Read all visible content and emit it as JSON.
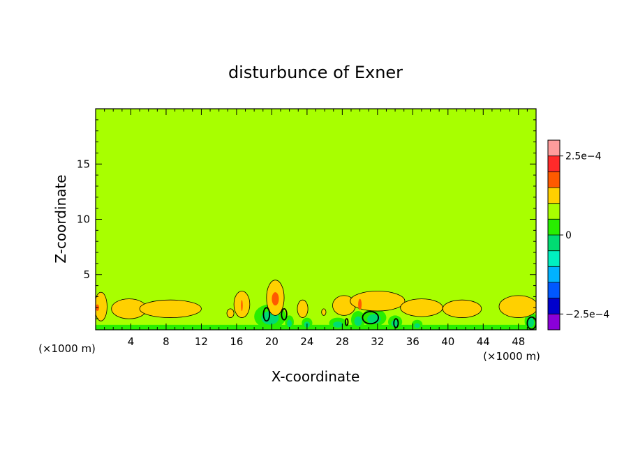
{
  "chart_data": {
    "type": "heatmap",
    "title": "disturbunce of Exner",
    "xlabel": "X-coordinate",
    "ylabel": "Z-coordinate",
    "x_unit": "(×1000 m)",
    "xlim": [
      0,
      50
    ],
    "ylim": [
      0,
      20
    ],
    "x_ticks": [
      4,
      8,
      12,
      16,
      20,
      24,
      28,
      32,
      36,
      40,
      44,
      48
    ],
    "y_ticks": [
      5,
      10,
      15
    ],
    "colorbar": {
      "levels": [
        {
          "lower": 0.00025,
          "color": "#ff9c9c"
        },
        {
          "lower": 0.0002,
          "color": "#ff2a2a"
        },
        {
          "lower": 0.00015,
          "color": "#ff5a00"
        },
        {
          "lower": 0.0001,
          "color": "#ffd000"
        },
        {
          "lower": 5e-05,
          "color": "#a8ff00"
        },
        {
          "lower": 0,
          "color": "#28ee00"
        },
        {
          "lower": -5e-05,
          "color": "#00dc72"
        },
        {
          "lower": -0.0001,
          "color": "#00f0c0"
        },
        {
          "lower": -0.00015,
          "color": "#00b2ff"
        },
        {
          "lower": -0.0002,
          "color": "#0058ff"
        },
        {
          "lower": -0.00025,
          "color": "#0000cc"
        },
        {
          "lower": -0.0003,
          "color": "#8a00d8"
        }
      ],
      "tick_labels": [
        {
          "value": 0.00025,
          "text": "2.5e−4"
        },
        {
          "value": 0,
          "text": "0"
        },
        {
          "value": -0.00025,
          "text": "−2.5e−4"
        }
      ]
    },
    "background_level_color": "#a8ff00",
    "features": {
      "positive_blobs": [
        {
          "x": 0.6,
          "z": 2.1,
          "rx": 0.7,
          "rz": 1.3
        },
        {
          "x": 3.8,
          "z": 1.9,
          "rx": 2.0,
          "rz": 0.9
        },
        {
          "x": 8.5,
          "z": 1.9,
          "rx": 3.5,
          "rz": 0.8
        },
        {
          "x": 15.3,
          "z": 1.5,
          "rx": 0.4,
          "rz": 0.4
        },
        {
          "x": 16.6,
          "z": 2.3,
          "rx": 0.9,
          "rz": 1.2
        },
        {
          "x": 20.4,
          "z": 2.9,
          "rx": 1.0,
          "rz": 1.6
        },
        {
          "x": 23.5,
          "z": 1.9,
          "rx": 0.6,
          "rz": 0.8
        },
        {
          "x": 25.9,
          "z": 1.6,
          "rx": 0.25,
          "rz": 0.3
        },
        {
          "x": 28.2,
          "z": 2.2,
          "rx": 1.3,
          "rz": 0.9
        },
        {
          "x": 32.0,
          "z": 2.6,
          "rx": 3.1,
          "rz": 0.9
        },
        {
          "x": 37.0,
          "z": 2.0,
          "rx": 2.4,
          "rz": 0.8
        },
        {
          "x": 41.6,
          "z": 1.9,
          "rx": 2.2,
          "rz": 0.8
        },
        {
          "x": 48.0,
          "z": 2.1,
          "rx": 2.2,
          "rz": 1.0
        }
      ],
      "strong_positive_spots": [
        {
          "x": 0.2,
          "z": 2.0,
          "rx": 0.2,
          "rz": 0.3
        },
        {
          "x": 16.6,
          "z": 2.2,
          "rx": 0.1,
          "rz": 0.5
        },
        {
          "x": 20.4,
          "z": 2.8,
          "rx": 0.4,
          "rz": 0.6
        },
        {
          "x": 30.0,
          "z": 2.3,
          "rx": 0.2,
          "rz": 0.5
        }
      ],
      "negative_blobs": [
        {
          "x": 19.8,
          "z": 1.2,
          "rx": 1.8,
          "rz": 1.1
        },
        {
          "x": 22.0,
          "z": 0.7,
          "rx": 0.5,
          "rz": 0.6
        },
        {
          "x": 24.0,
          "z": 0.6,
          "rx": 0.6,
          "rz": 0.5
        },
        {
          "x": 27.5,
          "z": 0.6,
          "rx": 1.0,
          "rz": 0.5
        },
        {
          "x": 29.8,
          "z": 0.9,
          "rx": 0.8,
          "rz": 0.8
        },
        {
          "x": 31.6,
          "z": 1.1,
          "rx": 1.4,
          "rz": 0.8
        },
        {
          "x": 34.0,
          "z": 0.7,
          "rx": 0.8,
          "rz": 0.6
        },
        {
          "x": 36.5,
          "z": 0.5,
          "rx": 0.6,
          "rz": 0.4
        },
        {
          "x": 49.4,
          "z": 0.8,
          "rx": 0.7,
          "rz": 0.8
        }
      ],
      "negative_contours": [
        {
          "x": 19.4,
          "z": 1.4,
          "rx": 0.35,
          "rz": 0.6
        },
        {
          "x": 21.4,
          "z": 1.4,
          "rx": 0.3,
          "rz": 0.5
        },
        {
          "x": 28.5,
          "z": 0.7,
          "rx": 0.15,
          "rz": 0.3
        },
        {
          "x": 31.2,
          "z": 1.1,
          "rx": 0.9,
          "rz": 0.55
        },
        {
          "x": 34.1,
          "z": 0.6,
          "rx": 0.25,
          "rz": 0.4
        },
        {
          "x": 49.5,
          "z": 0.6,
          "rx": 0.5,
          "rz": 0.55
        }
      ]
    }
  }
}
